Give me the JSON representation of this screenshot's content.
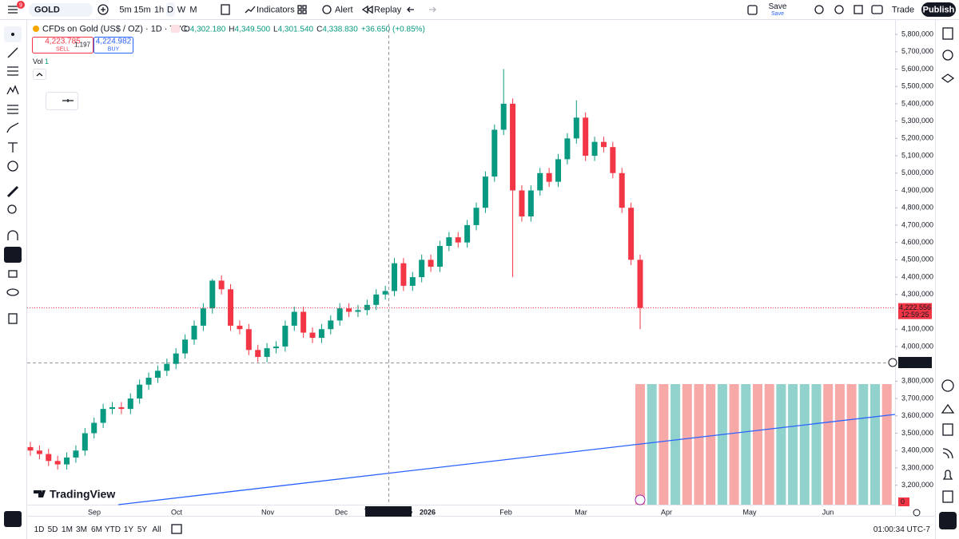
{
  "toolbar": {
    "badge": "9",
    "symbol": "GOLD",
    "intervals": [
      "5m",
      "15m",
      "1h",
      "D",
      "W",
      "M"
    ],
    "indicators": "Indicators",
    "alert": "Alert",
    "replay": "Replay",
    "save": "Save",
    "save_sub": "Save",
    "trade": "Trade",
    "publish": "Publish"
  },
  "legend": {
    "title": "CFDs on Gold (US$ / OZ) · 1D · TVC",
    "ohlc": [
      {
        "key": "O",
        "value": "4,302.180"
      },
      {
        "key": "H",
        "value": "4,349.500"
      },
      {
        "key": "L",
        "value": "4,301.540"
      },
      {
        "key": "C",
        "value": "4,338.830"
      }
    ],
    "change": "+36.650 (+0.85%)",
    "sell": "4,223.785",
    "sell_label": "SELL",
    "spread": "1,197",
    "buy": "4,224.982",
    "buy_label": "BUY",
    "vol": "Vol",
    "vol_value": "1"
  },
  "chart_data": {
    "type": "candlestick",
    "up_color": "#089981",
    "down_color": "#f23645",
    "open": [
      3420000,
      3400000,
      3380000,
      3340000,
      3320000,
      3360000,
      3400000,
      3500000,
      3560000,
      3640000,
      3650000,
      3640000,
      3700000,
      3780000,
      3820000,
      3860000,
      3900000,
      3960000,
      4040000,
      4120000,
      4220000,
      4380000,
      4330000,
      4120000,
      4100000,
      3980000,
      3940000,
      3990000,
      4000000,
      4120000,
      4200000,
      4080000,
      4050000,
      4100000,
      4150000,
      4220000,
      4200000,
      4210000,
      4240000,
      4300000,
      4320000,
      4480000,
      4350000,
      4400000,
      4500000,
      4460000,
      4580000,
      4630000,
      4600000,
      4700000,
      4800000,
      4980000,
      5250000,
      5400000,
      4900000,
      4750000,
      4900000,
      5000000,
      4950000,
      5080000,
      5200000,
      5320000,
      5100000,
      5180000,
      5150000,
      5000000,
      4800000,
      4500000
    ],
    "high": [
      3450000,
      3430000,
      3410000,
      3370000,
      3390000,
      3430000,
      3530000,
      3590000,
      3670000,
      3680000,
      3680000,
      3730000,
      3810000,
      3850000,
      3890000,
      3930000,
      3990000,
      4070000,
      4150000,
      4250000,
      4390000,
      4410000,
      4360000,
      4150000,
      4130000,
      4010000,
      4020000,
      4030000,
      4150000,
      4230000,
      4230000,
      4110000,
      4130000,
      4180000,
      4250000,
      4250000,
      4240000,
      4270000,
      4330000,
      4350000,
      4510000,
      4510000,
      4430000,
      4530000,
      4530000,
      4610000,
      4660000,
      4660000,
      4730000,
      4830000,
      5010000,
      5280000,
      5600000,
      5430000,
      4930000,
      4930000,
      5030000,
      5030000,
      5110000,
      5230000,
      5420000,
      5350000,
      5210000,
      5210000,
      5180000,
      5030000,
      4830000,
      4530000
    ],
    "low": [
      3370000,
      3350000,
      3310000,
      3290000,
      3290000,
      3330000,
      3370000,
      3470000,
      3530000,
      3610000,
      3610000,
      3610000,
      3670000,
      3750000,
      3790000,
      3830000,
      3870000,
      3930000,
      4010000,
      4090000,
      4190000,
      4300000,
      4090000,
      4070000,
      3950000,
      3910000,
      3910000,
      3960000,
      3970000,
      4090000,
      4050000,
      4020000,
      4020000,
      4070000,
      4120000,
      4170000,
      4170000,
      4180000,
      4210000,
      4270000,
      4290000,
      4320000,
      4320000,
      4370000,
      4430000,
      4430000,
      4550000,
      4570000,
      4570000,
      4670000,
      4770000,
      4950000,
      5220000,
      4400000,
      4720000,
      4720000,
      4870000,
      4920000,
      4920000,
      5050000,
      5170000,
      5070000,
      5070000,
      5120000,
      4970000,
      4770000,
      4470000,
      4100000
    ],
    "close": [
      3400000,
      3380000,
      3340000,
      3320000,
      3360000,
      3400000,
      3500000,
      3560000,
      3640000,
      3650000,
      3640000,
      3700000,
      3780000,
      3820000,
      3860000,
      3900000,
      3960000,
      4040000,
      4120000,
      4220000,
      4380000,
      4330000,
      4120000,
      4100000,
      3980000,
      3940000,
      3990000,
      4000000,
      4120000,
      4200000,
      4080000,
      4050000,
      4100000,
      4150000,
      4220000,
      4200000,
      4210000,
      4240000,
      4300000,
      4320000,
      4480000,
      4350000,
      4400000,
      4500000,
      4460000,
      4580000,
      4630000,
      4600000,
      4700000,
      4800000,
      4980000,
      5250000,
      5400000,
      4900000,
      4750000,
      4900000,
      5000000,
      4950000,
      5080000,
      5200000,
      5320000,
      5100000,
      5180000,
      5150000,
      5000000,
      4800000,
      4500000,
      4222556
    ],
    "ylim": [
      3088000,
      5860000
    ],
    "yticks": [
      {
        "value": 3200000,
        "label": "3,200,000"
      },
      {
        "value": 3300000,
        "label": "3,300,000"
      },
      {
        "value": 3400000,
        "label": "3,400,000"
      },
      {
        "value": 3500000,
        "label": "3,500,000"
      },
      {
        "value": 3600000,
        "label": "3,600,000"
      },
      {
        "value": 3700000,
        "label": "3,700,000"
      },
      {
        "value": 3800000,
        "label": "3,800,000"
      },
      {
        "value": 4000000,
        "label": "4,000,000"
      },
      {
        "value": 4100000,
        "label": "4,100,000"
      },
      {
        "value": 4300000,
        "label": "4,300,000"
      },
      {
        "value": 4400000,
        "label": "4,400,000"
      },
      {
        "value": 4500000,
        "label": "4,500,000"
      },
      {
        "value": 4600000,
        "label": "4,600,000"
      },
      {
        "value": 4700000,
        "label": "4,700,000"
      },
      {
        "value": 4800000,
        "label": "4,800,000"
      },
      {
        "value": 4900000,
        "label": "4,900,000"
      },
      {
        "value": 5000000,
        "label": "5,000,000"
      },
      {
        "value": 5100000,
        "label": "5,100,000"
      },
      {
        "value": 5200000,
        "label": "5,200,000"
      },
      {
        "value": 5300000,
        "label": "5,300,000"
      },
      {
        "value": 5400000,
        "label": "5,400,000"
      },
      {
        "value": 5500000,
        "label": "5,500,000"
      },
      {
        "value": 5600000,
        "label": "5,600,000"
      },
      {
        "value": 5700000,
        "label": "5,700,000"
      },
      {
        "value": 5800000,
        "label": "5,800,000"
      }
    ],
    "xticks": [
      "Sep",
      "Oct",
      "Nov",
      "Dec",
      "2026",
      "Feb",
      "Mar",
      "Apr",
      "May",
      "Jun"
    ],
    "crosshair_date": "Tue 17 Dec '25",
    "last_price": "4,222.556",
    "countdown": "12:59:25",
    "crosshair_price": "3,910.769",
    "volume_axis_label": "0"
  },
  "ranges": [
    "1D",
    "5D",
    "1M",
    "3M",
    "6M",
    "YTD",
    "1Y",
    "5Y",
    "All"
  ],
  "clock": "01:00:34 UTC-7",
  "brand": "TradingView"
}
